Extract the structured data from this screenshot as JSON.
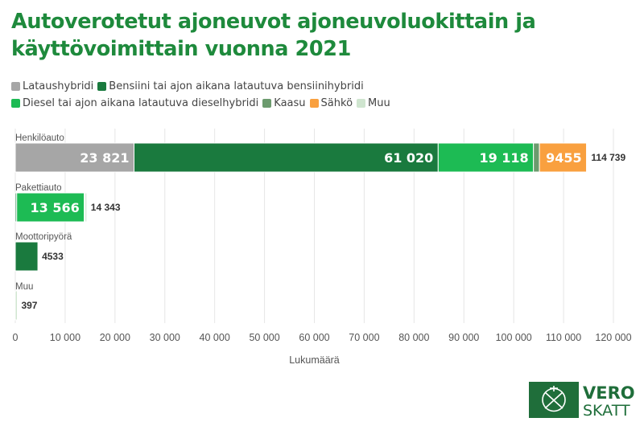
{
  "title": "Autoverotetut ajoneuvot ajoneuvoluokittain ja käyttövoimittain vuonna 2021",
  "legend": [
    {
      "label": "Lataushybridi",
      "color": "#a6a6a6"
    },
    {
      "label": "Bensiini tai ajon aikana latautuva bensiinihybridi",
      "color": "#1a7a3e"
    },
    {
      "label": "Diesel tai ajon aikana latautuva dieselhybridi",
      "color": "#1dbb54"
    },
    {
      "label": "Kaasu",
      "color": "#6c9b6e"
    },
    {
      "label": "Sähkö",
      "color": "#f9a03f"
    },
    {
      "label": "Muu",
      "color": "#cfe5cf"
    }
  ],
  "logo": {
    "line1": "VERO",
    "line2": "SKATT"
  },
  "chart_data": {
    "type": "bar",
    "orientation": "horizontal",
    "stacked": true,
    "categories": [
      "Henkilöauto",
      "Pakettiauto",
      "Moottoripyörä",
      "Muu"
    ],
    "series": [
      {
        "name": "Lataushybridi",
        "color": "#a6a6a6",
        "values": [
          23821,
          0,
          0,
          0
        ]
      },
      {
        "name": "Bensiini tai ajon aikana latautuva bensiinihybridi",
        "color": "#1a7a3e",
        "values": [
          61020,
          280,
          4533,
          0
        ]
      },
      {
        "name": "Diesel tai ajon aikana latautuva dieselhybridi",
        "color": "#1dbb54",
        "values": [
          19118,
          13566,
          0,
          0
        ]
      },
      {
        "name": "Kaasu",
        "color": "#6c9b6e",
        "values": [
          1200,
          100,
          0,
          0
        ]
      },
      {
        "name": "Sähkö",
        "color": "#f9a03f",
        "values": [
          9455,
          60,
          0,
          0
        ]
      },
      {
        "name": "Muu",
        "color": "#cfe5cf",
        "values": [
          125,
          337,
          0,
          397
        ]
      }
    ],
    "segment_labels": [
      [
        "23 821",
        "",
        "",
        ""
      ],
      [
        "61 020",
        "",
        "",
        ""
      ],
      [
        "19 118",
        "13 566",
        "",
        ""
      ],
      [
        "",
        "",
        "",
        ""
      ],
      [
        "9455",
        "",
        "",
        ""
      ],
      [
        "",
        "",
        "",
        ""
      ]
    ],
    "totals": [
      114739,
      14343,
      4533,
      397
    ],
    "total_labels": [
      "114 739",
      "14 343",
      "4533",
      "397"
    ],
    "xlabel": "Lukumäärä",
    "xlim": [
      0,
      120000
    ],
    "xticks": [
      0,
      10000,
      20000,
      30000,
      40000,
      50000,
      60000,
      70000,
      80000,
      90000,
      100000,
      110000,
      120000
    ],
    "xtick_labels": [
      "0",
      "10 000",
      "20 000",
      "30 000",
      "40 000",
      "50 000",
      "60 000",
      "70 000",
      "80 000",
      "90 000",
      "100 000",
      "110 000",
      "120 000"
    ],
    "grid": "vertical"
  }
}
